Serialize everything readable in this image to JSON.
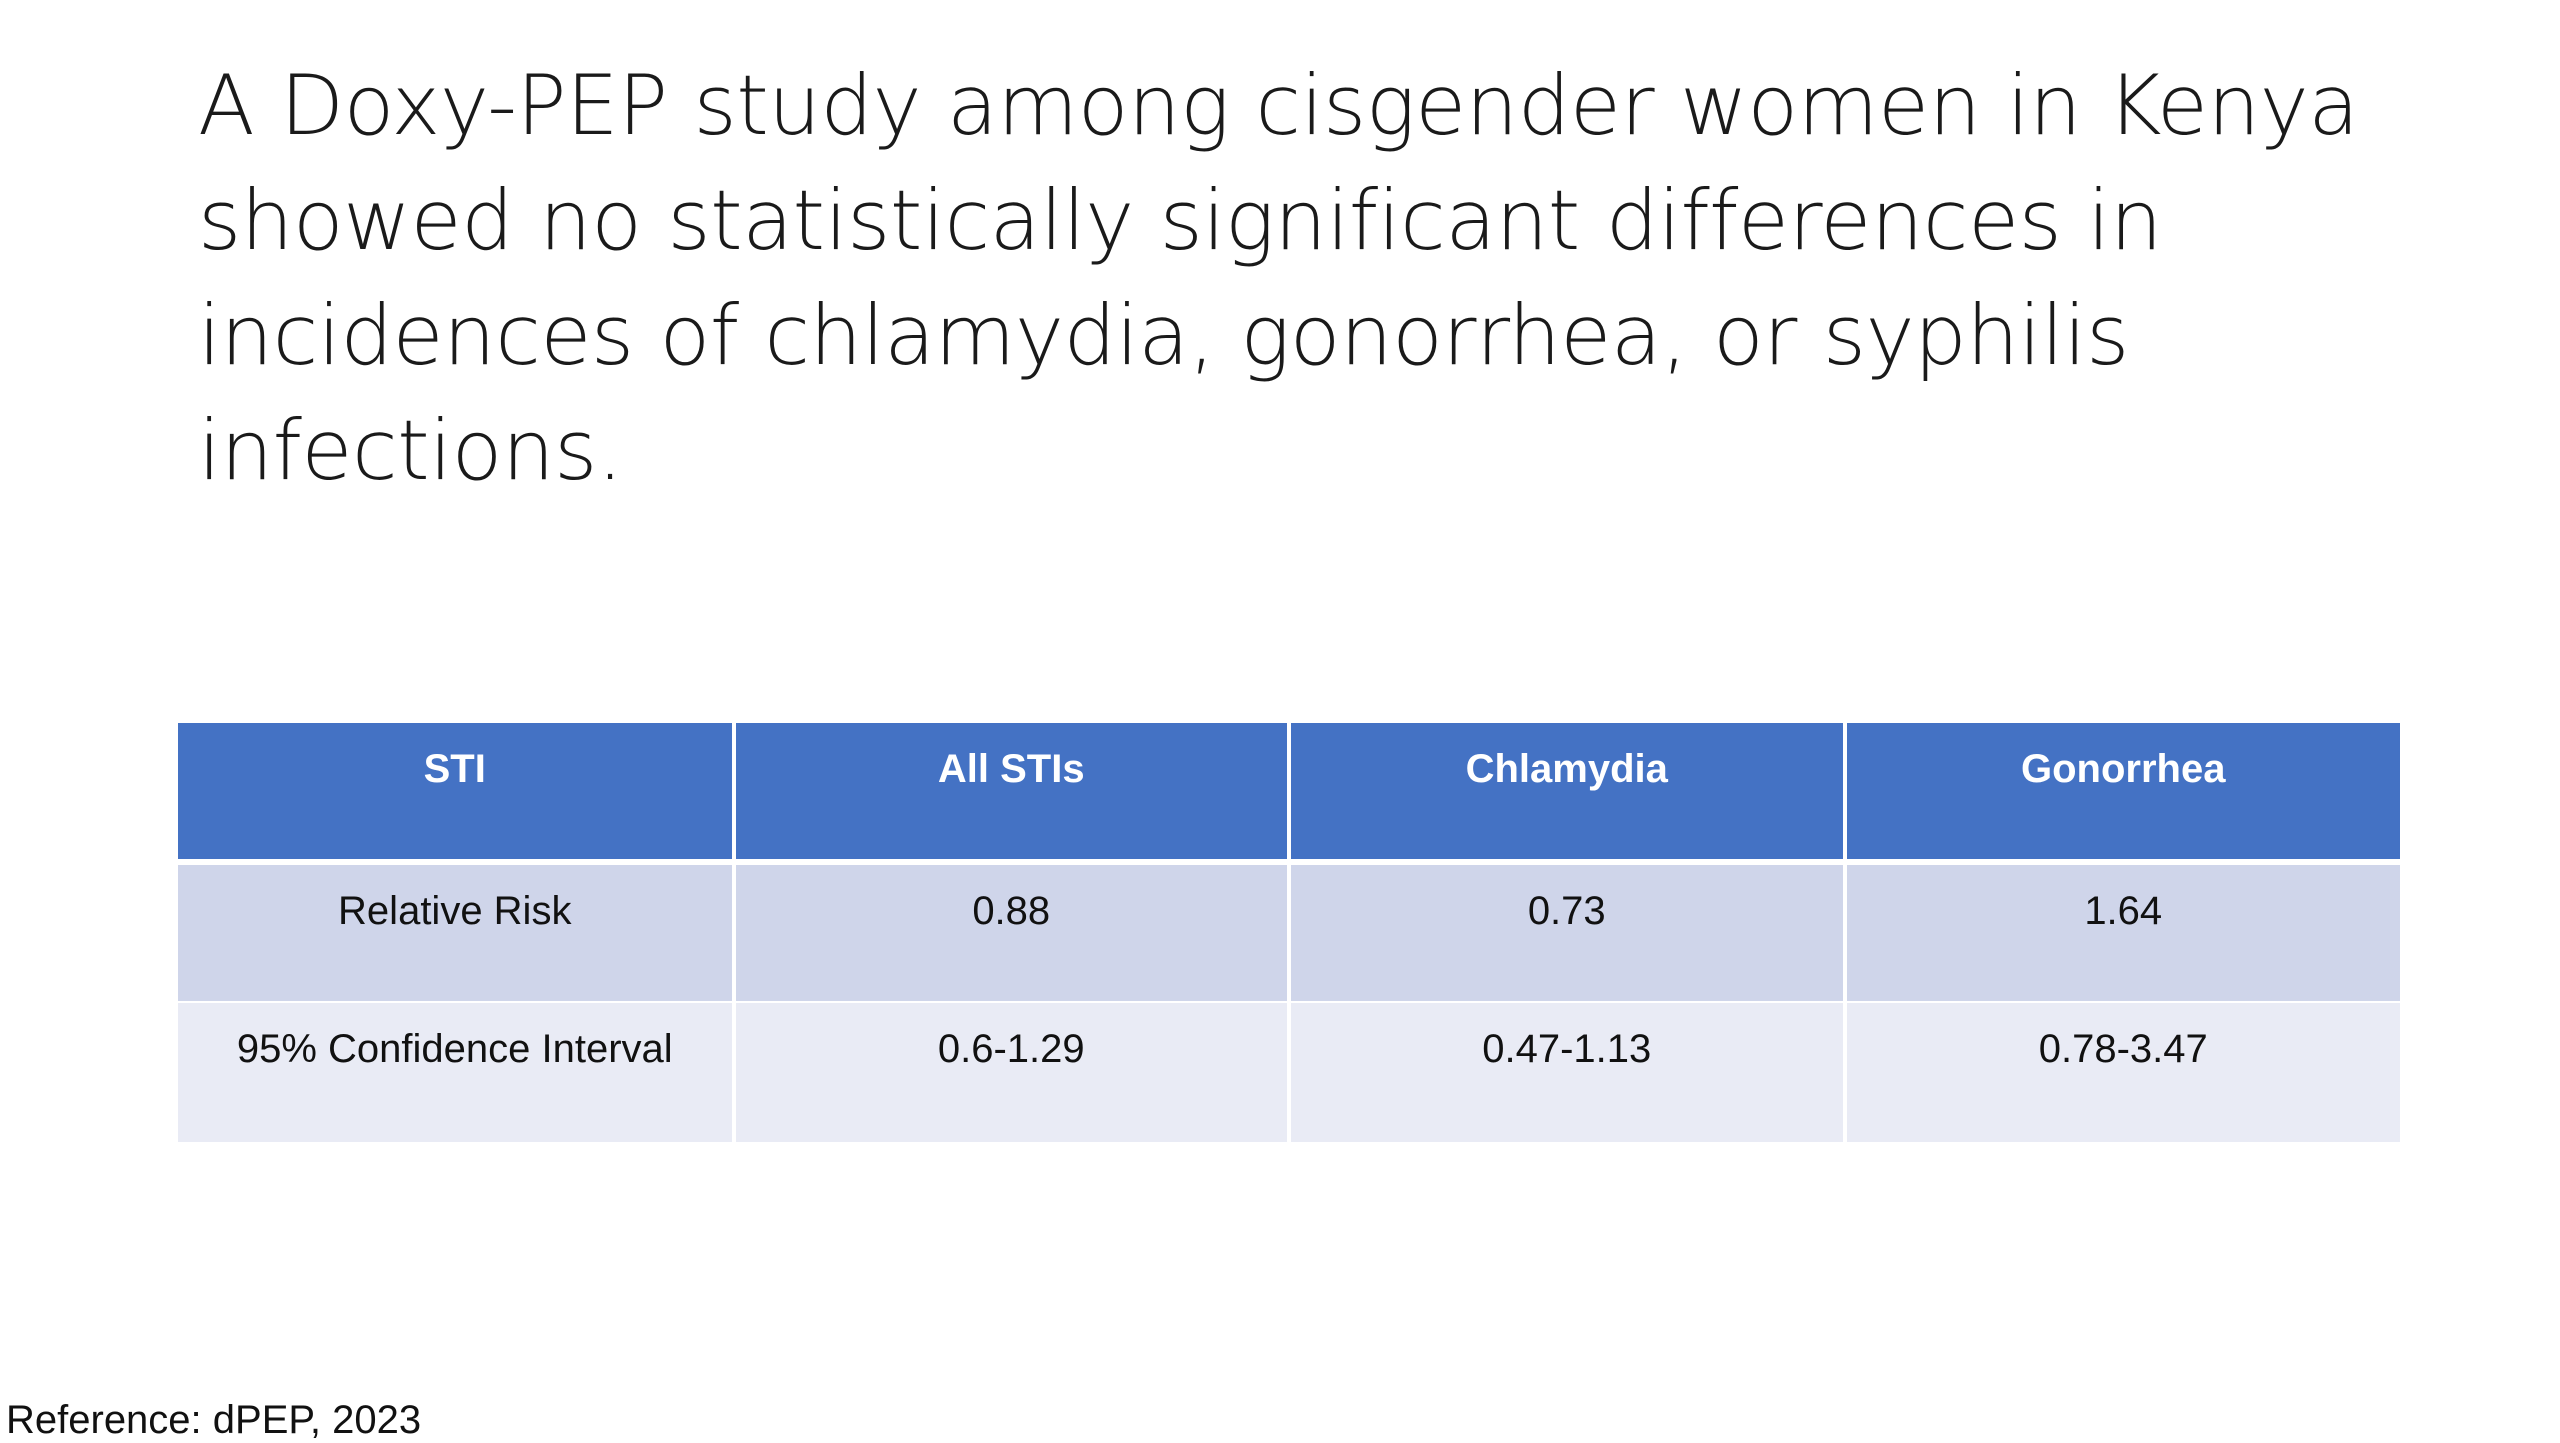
{
  "slide": {
    "title": "A Doxy-PEP study among cisgender women in Kenya showed no statistically significant differences in incidences of chlamydia, gonorrhea, or syphilis infections.",
    "table": {
      "headers": [
        "STI",
        "All STIs",
        "Chlamydia",
        "Gonorrhea"
      ],
      "rows": [
        [
          "Relative Risk",
          "0.88",
          "0.73",
          "1.64"
        ],
        [
          "95% Confidence Interval",
          "0.6-1.29",
          "0.47-1.13",
          "0.78-3.47"
        ]
      ]
    },
    "reference": "Reference: dPEP, 2023",
    "colors": {
      "header_fill": "#4472c4",
      "row_odd_fill": "#cfd5ea",
      "row_even_fill": "#e9ebf5"
    }
  }
}
